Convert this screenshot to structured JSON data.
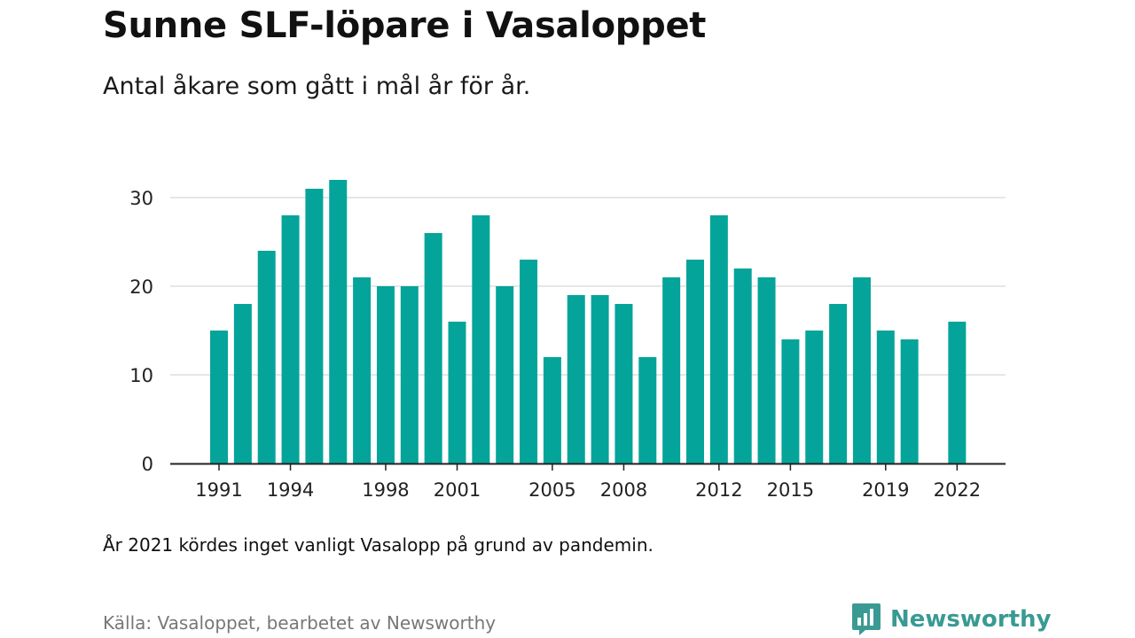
{
  "header": {
    "title": "Sunne SLF-löpare i Vasaloppet",
    "subtitle": "Antal åkare som gått i mål år för år."
  },
  "footer": {
    "note": "År 2021 kördes inget vanligt Vasalopp på grund av pandemin.",
    "source": "Källa: Vasaloppet, bearbetet av Newsworthy",
    "brand": "Newsworthy"
  },
  "colors": {
    "bar": "#05a49a",
    "grid": "#dddddd",
    "axis": "#222222",
    "brand": "#3a9a93"
  },
  "icons": {
    "brand_logo": "newsworthy-logo-icon"
  },
  "chart_data": {
    "type": "bar",
    "title": "Sunne SLF-löpare i Vasaloppet",
    "subtitle": "Antal åkare som gått i mål år för år.",
    "x": [
      1991,
      1992,
      1993,
      1994,
      1995,
      1996,
      1997,
      1998,
      1999,
      2000,
      2001,
      2002,
      2003,
      2004,
      2005,
      2006,
      2007,
      2008,
      2009,
      2010,
      2011,
      2012,
      2013,
      2014,
      2015,
      2016,
      2017,
      2018,
      2019,
      2020,
      2021,
      2022
    ],
    "values": [
      15,
      18,
      24,
      28,
      31,
      32,
      21,
      20,
      20,
      26,
      16,
      28,
      20,
      23,
      12,
      19,
      19,
      18,
      12,
      21,
      23,
      28,
      22,
      21,
      14,
      15,
      18,
      21,
      15,
      14,
      null,
      16
    ],
    "x_tick_labels": [
      "1991",
      "1994",
      "1998",
      "2001",
      "2005",
      "2008",
      "2012",
      "2015",
      "2019",
      "2022"
    ],
    "y_ticks": [
      0,
      10,
      20,
      30
    ],
    "ylim": [
      0,
      33
    ],
    "xlabel": "",
    "ylabel": "",
    "grid": true,
    "legend": "none"
  }
}
